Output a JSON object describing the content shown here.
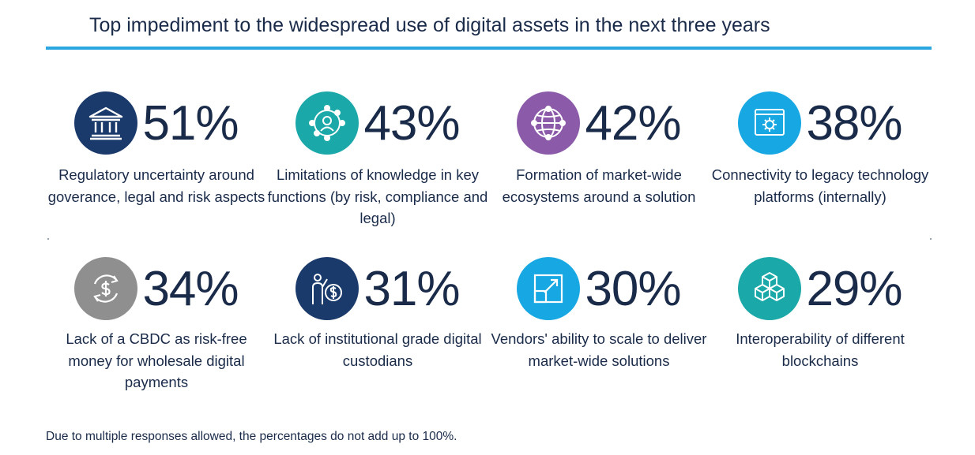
{
  "title": "Top impediment to the widespread use of digital assets in the next three years",
  "colors": {
    "accent_rule": "#2aa7e0",
    "text": "#1a2b4a"
  },
  "items": [
    {
      "percent": "51%",
      "label": "Regulatory uncertainty around goverance, legal and risk aspects",
      "icon": "bank-building-icon",
      "color": "#1a3a6b"
    },
    {
      "percent": "43%",
      "label": "Limitations of knowledge in key functions (by risk, compliance and legal)",
      "icon": "people-network-icon",
      "color": "#1ba8a8"
    },
    {
      "percent": "42%",
      "label": "Formation of market-wide ecosystems around a solution",
      "icon": "globe-network-icon",
      "color": "#8b5aa8"
    },
    {
      "percent": "38%",
      "label": "Connectivity to legacy technology platforms (internally)",
      "icon": "gear-window-icon",
      "color": "#17a8e3"
    },
    {
      "percent": "34%",
      "label": "Lack of a CBDC as risk-free money for wholesale digital payments",
      "icon": "dollar-exchange-icon",
      "color": "#8f8f8f"
    },
    {
      "percent": "31%",
      "label": "Lack of institutional grade digital custodians",
      "icon": "person-coin-icon",
      "color": "#1a3a6b"
    },
    {
      "percent": "30%",
      "label": "Vendors' ability to scale to deliver market-wide solutions",
      "icon": "scale-arrow-icon",
      "color": "#17a8e3"
    },
    {
      "percent": "29%",
      "label": "Interoperability of different blockchains",
      "icon": "cubes-icon",
      "color": "#1ba8a8"
    }
  ],
  "footnote": "Due to multiple responses allowed, the percentages do not add up to 100%."
}
